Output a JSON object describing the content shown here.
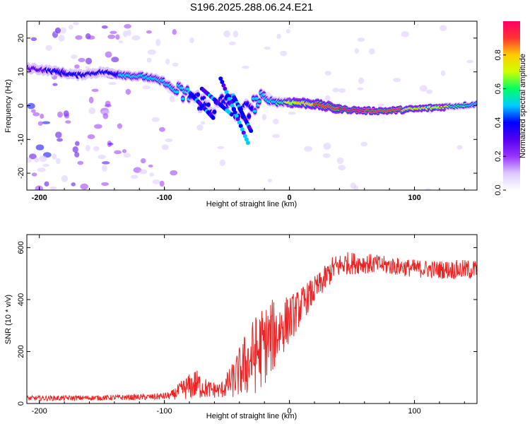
{
  "title": "S196.2025.288.06.24.E21",
  "colors": {
    "snr_line": "#ee2222",
    "frame": "#000000",
    "colormap": [
      "#ffffff",
      "#dcc8ff",
      "#9933ff",
      "#5500ee",
      "#0000ff",
      "#00ccff",
      "#00ff66",
      "#ccff00",
      "#ffcc00",
      "#ff3333",
      "#ff0066"
    ]
  },
  "chart_data": [
    {
      "type": "heatmap",
      "name": "spectrogram",
      "xlabel": "Height of straight line (km)",
      "ylabel": "Frequency (Hz)",
      "xlim": [
        -210,
        150
      ],
      "ylim": [
        -25,
        25
      ],
      "xticks": [
        -200,
        -100,
        0,
        100
      ],
      "xtick_labels": [
        "-200",
        "-100",
        "0",
        "100"
      ],
      "yticks": [
        -20,
        -10,
        0,
        10,
        20
      ],
      "ytick_labels": [
        "-20",
        "-10",
        "0",
        "10",
        "20"
      ],
      "ridge_x": [
        -205,
        -185,
        -170,
        -150,
        -130,
        -115,
        -100,
        -90,
        -80,
        -70,
        -60,
        -50,
        -40,
        -30,
        -20,
        -10,
        0,
        20,
        40,
        60,
        80,
        100,
        120,
        150
      ],
      "ridge_freq": [
        11,
        10,
        9,
        10,
        9,
        8.5,
        7,
        4,
        3,
        1,
        -1,
        2,
        -3,
        0,
        2,
        1,
        1,
        0.5,
        -1,
        -1.5,
        -1.5,
        -1,
        -0.5,
        0.5
      ],
      "ridge_amp": [
        0.25,
        0.45,
        0.4,
        0.35,
        0.5,
        0.55,
        0.45,
        0.5,
        0.45,
        0.4,
        0.4,
        0.45,
        0.4,
        0.45,
        0.5,
        0.55,
        0.7,
        0.85,
        0.95,
        0.95,
        0.9,
        0.8,
        0.7,
        0.5
      ],
      "colorbar": {
        "label": "Normalized spectral amplitude",
        "range": [
          0,
          1
        ],
        "ticks": [
          0.0,
          0.2,
          0.4,
          0.6,
          0.8
        ],
        "tick_labels": [
          "0.0",
          "0.2",
          "0.4",
          "0.6",
          "0.8"
        ]
      }
    },
    {
      "type": "line",
      "name": "snr",
      "xlabel": "Height of straight line (km)",
      "ylabel": "SNR (10 * v/v)",
      "xlim": [
        -210,
        150
      ],
      "ylim": [
        0,
        650
      ],
      "xticks": [
        -200,
        -100,
        0,
        100
      ],
      "xtick_labels": [
        "-200",
        "-100",
        "0",
        "100"
      ],
      "yticks": [
        0,
        200,
        400,
        600
      ],
      "ytick_labels": [
        "0",
        "200",
        "400",
        "600"
      ],
      "envelope_x": [
        -210,
        -150,
        -110,
        -95,
        -85,
        -75,
        -65,
        -55,
        -45,
        -35,
        -25,
        -15,
        -5,
        5,
        15,
        25,
        35,
        45,
        60,
        80,
        100,
        120,
        150
      ],
      "envelope_mean": [
        20,
        22,
        25,
        30,
        55,
        75,
        55,
        50,
        90,
        150,
        200,
        250,
        300,
        350,
        410,
        460,
        520,
        540,
        540,
        530,
        520,
        515,
        515
      ],
      "envelope_spread": [
        10,
        10,
        12,
        15,
        40,
        60,
        35,
        30,
        70,
        130,
        160,
        150,
        110,
        80,
        60,
        50,
        50,
        45,
        40,
        35,
        35,
        35,
        40
      ]
    }
  ]
}
